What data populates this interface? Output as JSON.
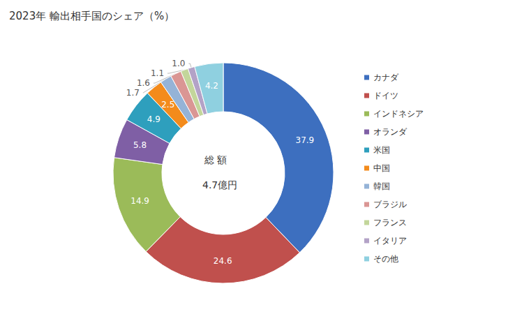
{
  "chart_data": {
    "type": "pie",
    "title": "2023年 輸出相手国のシェア（%）",
    "annotations": [
      "総 額",
      "4.7億円"
    ],
    "categories": [
      "カナダ",
      "ドイツ",
      "インドネシア",
      "オランダ",
      "米国",
      "中国",
      "韓国",
      "ブラジル",
      "フランス",
      "イタリア",
      "その他"
    ],
    "values": [
      37.9,
      24.6,
      14.9,
      5.8,
      4.9,
      2.5,
      1.7,
      1.6,
      1.1,
      1.0,
      4.2
    ],
    "value_labels": [
      "37.9",
      "24.6",
      "14.9",
      "5.8",
      "4.9",
      "2.5",
      "1.7",
      "1.6",
      "1.1",
      "1.0",
      "4.2"
    ],
    "colors": [
      "#3d6fbf",
      "#c0504d",
      "#9bbb59",
      "#7f5fa5",
      "#2e9fbd",
      "#f38b1c",
      "#95b3d7",
      "#da9694",
      "#c3d69b",
      "#b3a2c7",
      "#8fd0e0"
    ],
    "data_labels": true,
    "legend": "right"
  }
}
